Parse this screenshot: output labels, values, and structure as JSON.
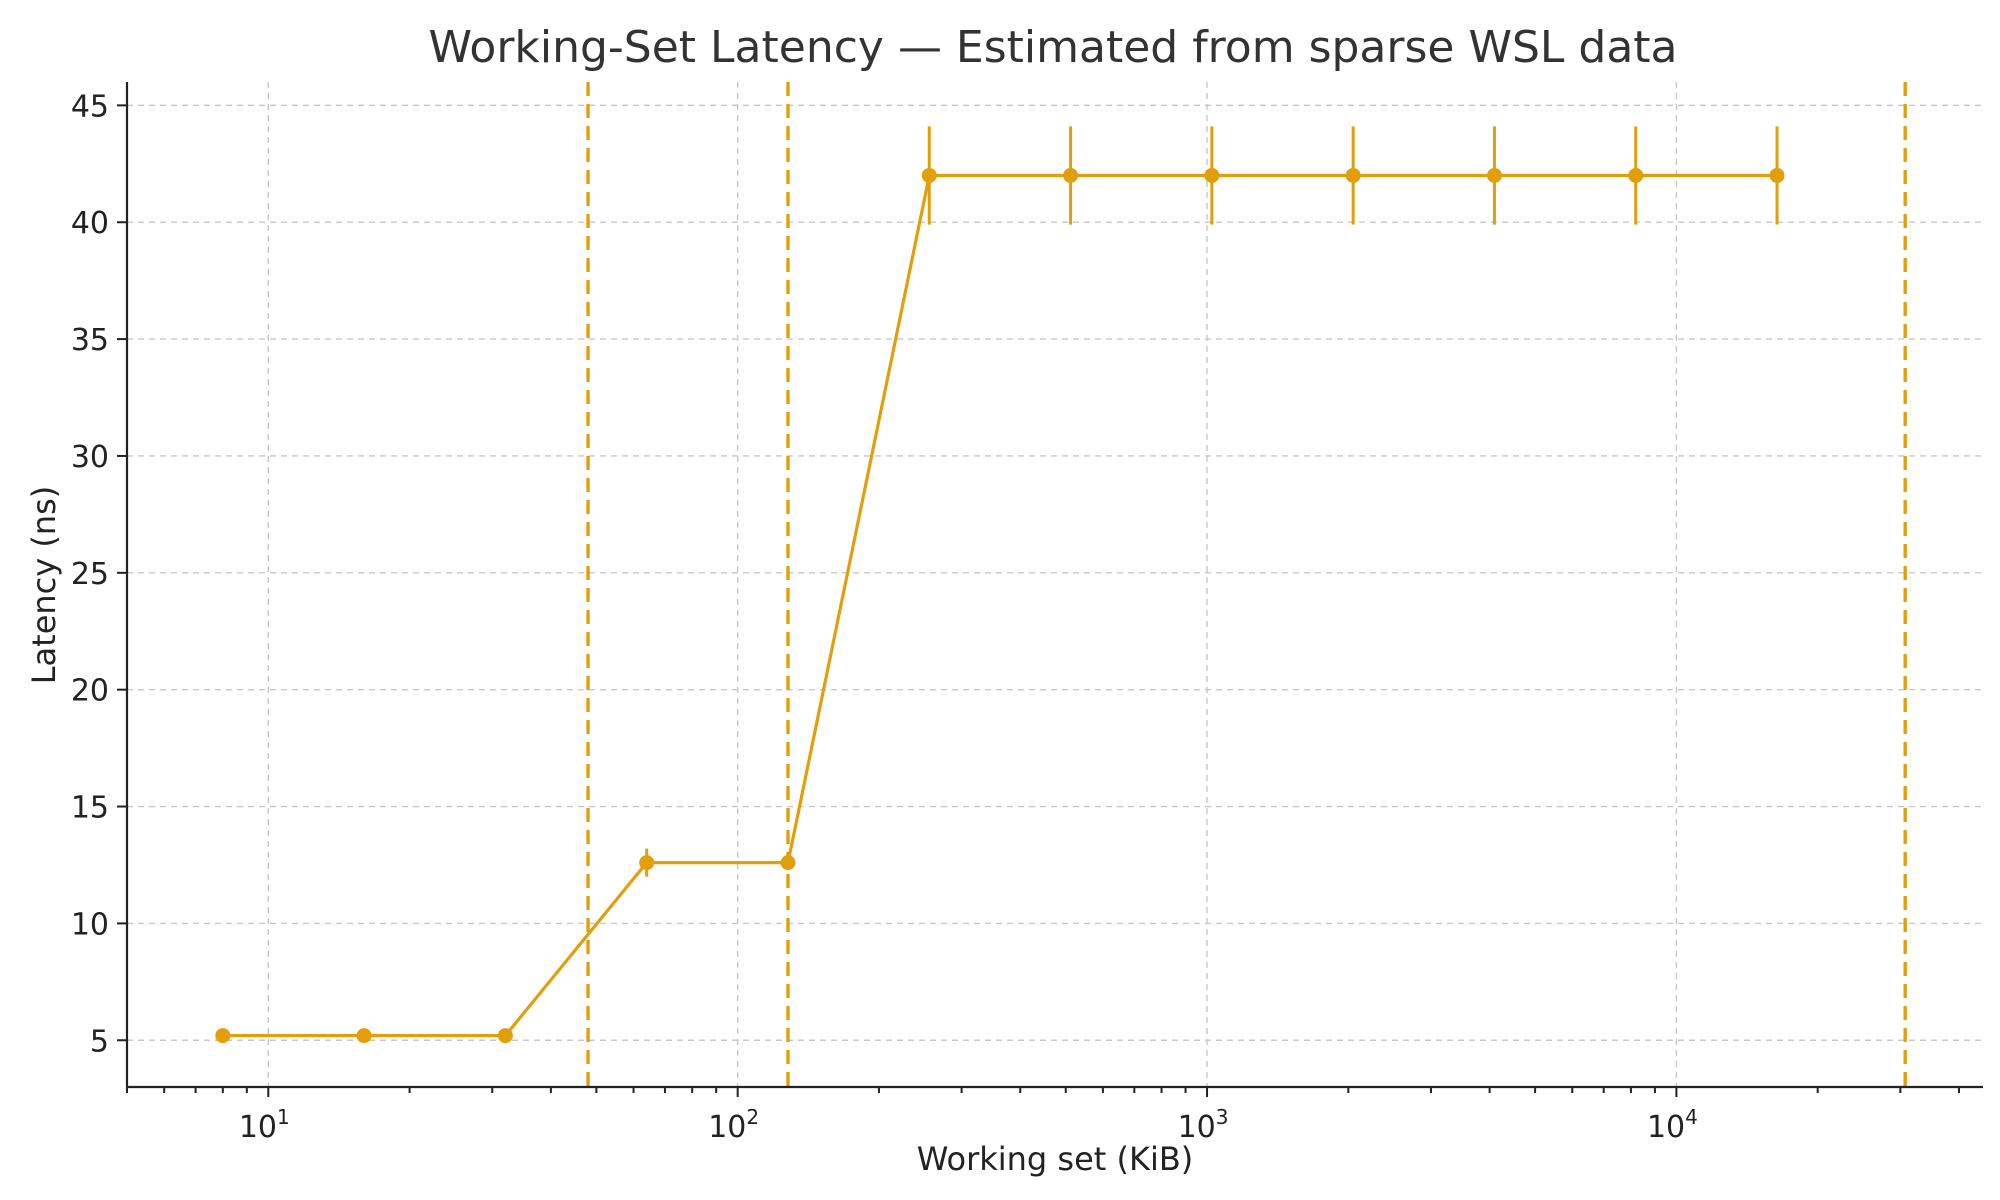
{
  "chart_data": {
    "type": "line",
    "title": "Working-Set Latency — Estimated from sparse WSL data",
    "xlabel": "Working set (KiB)",
    "ylabel": "Latency (ns)",
    "xscale": "log",
    "xlim": [
      5,
      45000
    ],
    "ylim": [
      3,
      46
    ],
    "x_ticks": [
      {
        "base": "10",
        "exp": "1",
        "value": 10
      },
      {
        "base": "10",
        "exp": "2",
        "value": 100
      },
      {
        "base": "10",
        "exp": "3",
        "value": 1000
      },
      {
        "base": "10",
        "exp": "4",
        "value": 10000
      }
    ],
    "y_ticks": [
      5,
      10,
      15,
      20,
      25,
      30,
      35,
      40,
      45
    ],
    "grid": true,
    "color": "#e39f0b",
    "series": [
      {
        "x": [
          8,
          16,
          32,
          64,
          128,
          256,
          512,
          1024,
          2048,
          4096,
          8192,
          16384
        ],
        "y": [
          5.2,
          5.2,
          5.2,
          12.6,
          12.6,
          42.0,
          42.0,
          42.0,
          42.0,
          42.0,
          42.0,
          42.0
        ],
        "yerr": [
          0,
          0,
          0,
          0.6,
          0,
          2.1,
          2.1,
          2.1,
          2.1,
          2.1,
          2.1,
          2.1
        ]
      }
    ],
    "vlines": [
      48,
      128,
      30720
    ]
  }
}
